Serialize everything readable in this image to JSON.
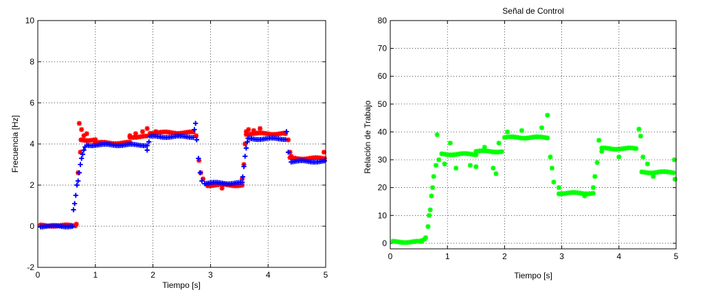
{
  "chart_data": [
    {
      "type": "scatter",
      "title": "",
      "xlabel": "Tiempo [s]",
      "ylabel": "Frecuencia [Hz]",
      "xlim": [
        0,
        5
      ],
      "ylim": [
        -2,
        10
      ],
      "xticks": [
        "0",
        "1",
        "2",
        "3",
        "4",
        "5"
      ],
      "yticks": [
        "-2",
        "0",
        "2",
        "4",
        "6",
        "8",
        "10"
      ],
      "grid": true,
      "series": [
        {
          "color": "#ff0000",
          "marker": "asterisk",
          "segments": [
            {
              "x0": 0.05,
              "x1": 0.65,
              "y": 0.03
            },
            {
              "x0": 0.75,
              "x1": 1.0,
              "y": 4.2
            },
            {
              "x0": 1.0,
              "x1": 1.6,
              "y": 4.05
            },
            {
              "x0": 1.6,
              "x1": 1.9,
              "y": 4.35
            },
            {
              "x0": 1.95,
              "x1": 2.7,
              "y": 4.55
            },
            {
              "x0": 2.95,
              "x1": 3.55,
              "y": 2.0
            },
            {
              "x0": 3.62,
              "x1": 4.3,
              "y": 4.5
            },
            {
              "x0": 4.38,
              "x1": 4.98,
              "y": 3.3
            }
          ],
          "points": [
            [
              0.67,
              0.1
            ],
            [
              0.7,
              2.6
            ],
            [
              0.72,
              5.0
            ],
            [
              0.74,
              3.6
            ],
            [
              0.76,
              4.7
            ],
            [
              0.8,
              4.4
            ],
            [
              0.85,
              4.5
            ],
            [
              1.6,
              4.4
            ],
            [
              1.7,
              4.5
            ],
            [
              1.82,
              4.6
            ],
            [
              1.9,
              4.75
            ],
            [
              2.05,
              4.6
            ],
            [
              2.75,
              4.4
            ],
            [
              2.8,
              3.2
            ],
            [
              2.83,
              2.6
            ],
            [
              2.87,
              2.3
            ],
            [
              3.2,
              1.85
            ],
            [
              3.55,
              2.3
            ],
            [
              3.58,
              3.0
            ],
            [
              3.6,
              4.0
            ],
            [
              3.62,
              4.6
            ],
            [
              3.66,
              4.7
            ],
            [
              3.75,
              4.65
            ],
            [
              3.86,
              4.75
            ],
            [
              4.3,
              4.5
            ],
            [
              4.35,
              4.2
            ],
            [
              4.38,
              3.6
            ],
            [
              4.4,
              3.4
            ],
            [
              4.97,
              3.6
            ]
          ]
        },
        {
          "color": "#0000ff",
          "marker": "plus",
          "segments": [
            {
              "x0": 0.05,
              "x1": 0.6,
              "y": 0.0
            },
            {
              "x0": 0.85,
              "x1": 1.9,
              "y": 3.95
            },
            {
              "x0": 1.95,
              "x1": 2.7,
              "y": 4.35
            },
            {
              "x0": 2.9,
              "x1": 3.55,
              "y": 2.1
            },
            {
              "x0": 3.65,
              "x1": 4.3,
              "y": 4.25
            },
            {
              "x0": 4.4,
              "x1": 4.98,
              "y": 3.15
            }
          ],
          "points": [
            [
              0.62,
              0.8
            ],
            [
              0.64,
              1.1
            ],
            [
              0.66,
              1.5
            ],
            [
              0.68,
              2.0
            ],
            [
              0.7,
              2.2
            ],
            [
              0.72,
              2.6
            ],
            [
              0.74,
              3.0
            ],
            [
              0.76,
              3.3
            ],
            [
              0.78,
              3.5
            ],
            [
              0.8,
              3.7
            ],
            [
              0.82,
              3.85
            ],
            [
              1.9,
              3.7
            ],
            [
              1.93,
              4.1
            ],
            [
              2.72,
              4.7
            ],
            [
              2.74,
              5.0
            ],
            [
              2.76,
              4.2
            ],
            [
              2.79,
              3.3
            ],
            [
              2.82,
              2.6
            ],
            [
              2.85,
              2.2
            ],
            [
              3.56,
              2.4
            ],
            [
              3.58,
              2.9
            ],
            [
              3.6,
              3.4
            ],
            [
              3.62,
              3.8
            ],
            [
              3.64,
              4.1
            ],
            [
              4.32,
              4.6
            ],
            [
              4.35,
              3.6
            ]
          ]
        }
      ]
    },
    {
      "type": "scatter",
      "title": "Señal de Control",
      "xlabel": "Tiempo [s]",
      "ylabel": "Relación de Trabajo",
      "xlim": [
        0,
        5
      ],
      "ylim": [
        -2,
        80
      ],
      "xticks": [
        "0",
        "1",
        "2",
        "3",
        "4",
        "5"
      ],
      "yticks": [
        "0",
        "10",
        "20",
        "30",
        "40",
        "50",
        "60",
        "70",
        "80"
      ],
      "grid": true,
      "series": [
        {
          "color": "#00ff00",
          "marker": "asterisk",
          "segments": [
            {
              "x0": 0.05,
              "x1": 0.55,
              "y": 0.5
            },
            {
              "x0": 0.9,
              "x1": 1.5,
              "y": 32.0
            },
            {
              "x0": 1.5,
              "x1": 1.95,
              "y": 33.0
            },
            {
              "x0": 2.0,
              "x1": 2.75,
              "y": 38.0
            },
            {
              "x0": 2.95,
              "x1": 3.55,
              "y": 18.0
            },
            {
              "x0": 3.7,
              "x1": 4.3,
              "y": 34.0
            },
            {
              "x0": 4.4,
              "x1": 4.95,
              "y": 25.5
            }
          ],
          "points": [
            [
              0.55,
              1.0
            ],
            [
              0.6,
              1.5
            ],
            [
              0.62,
              2.0
            ],
            [
              0.66,
              6.0
            ],
            [
              0.68,
              10.0
            ],
            [
              0.7,
              12.0
            ],
            [
              0.72,
              17.0
            ],
            [
              0.74,
              20.0
            ],
            [
              0.76,
              24.0
            ],
            [
              0.8,
              28.0
            ],
            [
              0.82,
              39.0
            ],
            [
              0.85,
              30.0
            ],
            [
              0.95,
              28.5
            ],
            [
              1.05,
              36.0
            ],
            [
              1.15,
              27.0
            ],
            [
              1.4,
              28.0
            ],
            [
              1.5,
              27.5
            ],
            [
              1.65,
              34.5
            ],
            [
              1.8,
              27.0
            ],
            [
              1.85,
              25.0
            ],
            [
              1.9,
              36.0
            ],
            [
              2.05,
              40.0
            ],
            [
              2.3,
              40.5
            ],
            [
              2.65,
              41.5
            ],
            [
              2.75,
              46.0
            ],
            [
              2.8,
              31.0
            ],
            [
              2.83,
              27.0
            ],
            [
              2.86,
              22.0
            ],
            [
              2.95,
              20.0
            ],
            [
              3.4,
              17.0
            ],
            [
              3.55,
              20.0
            ],
            [
              3.58,
              24.0
            ],
            [
              3.62,
              29.0
            ],
            [
              3.65,
              37.0
            ],
            [
              3.7,
              33.0
            ],
            [
              4.0,
              31.0
            ],
            [
              4.35,
              41.0
            ],
            [
              4.38,
              38.5
            ],
            [
              4.42,
              31.0
            ],
            [
              4.5,
              28.5
            ],
            [
              4.6,
              24.0
            ],
            [
              4.97,
              30.0
            ],
            [
              4.98,
              23.0
            ]
          ]
        }
      ]
    }
  ]
}
